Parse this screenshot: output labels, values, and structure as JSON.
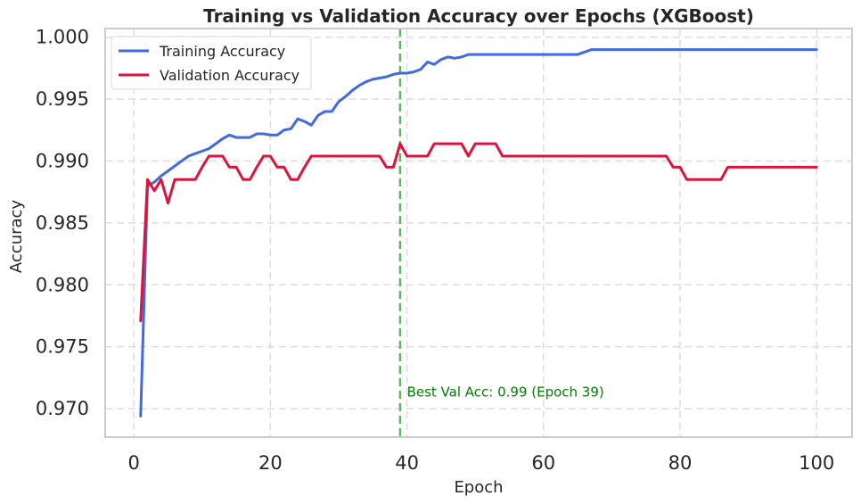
{
  "chart_data": {
    "type": "line",
    "title": "Training vs Validation Accuracy over Epochs (XGBoost)",
    "xlabel": "Epoch",
    "ylabel": "Accuracy",
    "xlim": [
      -4.2,
      105.2
    ],
    "ylim": [
      0.9677,
      1.0007
    ],
    "xticks": [
      0,
      20,
      40,
      60,
      80,
      100
    ],
    "xtick_labels": [
      "0",
      "20",
      "40",
      "60",
      "80",
      "100"
    ],
    "yticks": [
      0.97,
      0.975,
      0.98,
      0.985,
      0.99,
      0.995,
      1.0
    ],
    "ytick_labels": [
      "0.970",
      "0.975",
      "0.980",
      "0.985",
      "0.990",
      "0.995",
      "1.000"
    ],
    "grid": true,
    "legend_position": "top-left",
    "x": [
      1,
      2,
      3,
      4,
      5,
      6,
      7,
      8,
      9,
      10,
      11,
      12,
      13,
      14,
      15,
      16,
      17,
      18,
      19,
      20,
      21,
      22,
      23,
      24,
      25,
      26,
      27,
      28,
      29,
      30,
      31,
      32,
      33,
      34,
      35,
      36,
      37,
      38,
      39,
      40,
      41,
      42,
      43,
      44,
      45,
      46,
      47,
      48,
      49,
      50,
      51,
      52,
      53,
      54,
      55,
      56,
      57,
      58,
      59,
      60,
      61,
      62,
      63,
      64,
      65,
      66,
      67,
      68,
      69,
      70,
      71,
      72,
      73,
      74,
      75,
      76,
      77,
      78,
      79,
      80,
      81,
      82,
      83,
      84,
      85,
      86,
      87,
      88,
      89,
      90,
      91,
      92,
      93,
      94,
      95,
      96,
      97,
      98,
      99,
      100
    ],
    "series": [
      {
        "name": "Training Accuracy",
        "color": "#4169e1",
        "values": [
          0.9694,
          0.988,
          0.9883,
          0.9888,
          0.9892,
          0.9896,
          0.99,
          0.9904,
          0.9906,
          0.9908,
          0.991,
          0.9914,
          0.9918,
          0.9921,
          0.9919,
          0.9919,
          0.9919,
          0.9922,
          0.9922,
          0.9921,
          0.9921,
          0.9925,
          0.9926,
          0.9934,
          0.9932,
          0.9929,
          0.9937,
          0.994,
          0.994,
          0.9948,
          0.9952,
          0.9957,
          0.9961,
          0.9964,
          0.9966,
          0.9967,
          0.9968,
          0.997,
          0.9971,
          0.9971,
          0.9972,
          0.9974,
          0.998,
          0.9978,
          0.9982,
          0.9984,
          0.9983,
          0.9984,
          0.9986,
          0.9986,
          0.9986,
          0.9986,
          0.9986,
          0.9986,
          0.9986,
          0.9986,
          0.9986,
          0.9986,
          0.9986,
          0.9986,
          0.9986,
          0.9986,
          0.9986,
          0.9986,
          0.9986,
          0.9988,
          0.999,
          0.999,
          0.999,
          0.999,
          0.999,
          0.999,
          0.999,
          0.999,
          0.999,
          0.999,
          0.999,
          0.999,
          0.999,
          0.999,
          0.999,
          0.999,
          0.999,
          0.999,
          0.999,
          0.999,
          0.999,
          0.999,
          0.999,
          0.999,
          0.999,
          0.999,
          0.999,
          0.999,
          0.999,
          0.999,
          0.999,
          0.999,
          0.999,
          0.999
        ]
      },
      {
        "name": "Validation Accuracy",
        "color": "#dc143c",
        "values": [
          0.9771,
          0.9885,
          0.9876,
          0.9885,
          0.9866,
          0.9885,
          0.9885,
          0.9885,
          0.9885,
          0.9895,
          0.9904,
          0.9904,
          0.9904,
          0.9895,
          0.9895,
          0.9885,
          0.9885,
          0.9895,
          0.9904,
          0.9904,
          0.9895,
          0.9895,
          0.9885,
          0.9885,
          0.9895,
          0.9904,
          0.9904,
          0.9904,
          0.9904,
          0.9904,
          0.9904,
          0.9904,
          0.9904,
          0.9904,
          0.9904,
          0.9904,
          0.9895,
          0.9895,
          0.9914,
          0.9904,
          0.9904,
          0.9904,
          0.9904,
          0.9914,
          0.9914,
          0.9914,
          0.9914,
          0.9914,
          0.9904,
          0.9914,
          0.9914,
          0.9914,
          0.9914,
          0.9904,
          0.9904,
          0.9904,
          0.9904,
          0.9904,
          0.9904,
          0.9904,
          0.9904,
          0.9904,
          0.9904,
          0.9904,
          0.9904,
          0.9904,
          0.9904,
          0.9904,
          0.9904,
          0.9904,
          0.9904,
          0.9904,
          0.9904,
          0.9904,
          0.9904,
          0.9904,
          0.9904,
          0.9904,
          0.9895,
          0.9895,
          0.9885,
          0.9885,
          0.9885,
          0.9885,
          0.9885,
          0.9885,
          0.9895,
          0.9895,
          0.9895,
          0.9895,
          0.9895,
          0.9895,
          0.9895,
          0.9895,
          0.9895,
          0.9895,
          0.9895,
          0.9895,
          0.9895,
          0.9895
        ]
      }
    ],
    "best_epoch_line": {
      "x": 39,
      "color": "#5cb85c"
    },
    "annotation": {
      "text": "Best Val Acc: 0.99 (Epoch 39)",
      "color": "#008000",
      "x": 40,
      "y": 0.9714
    }
  }
}
